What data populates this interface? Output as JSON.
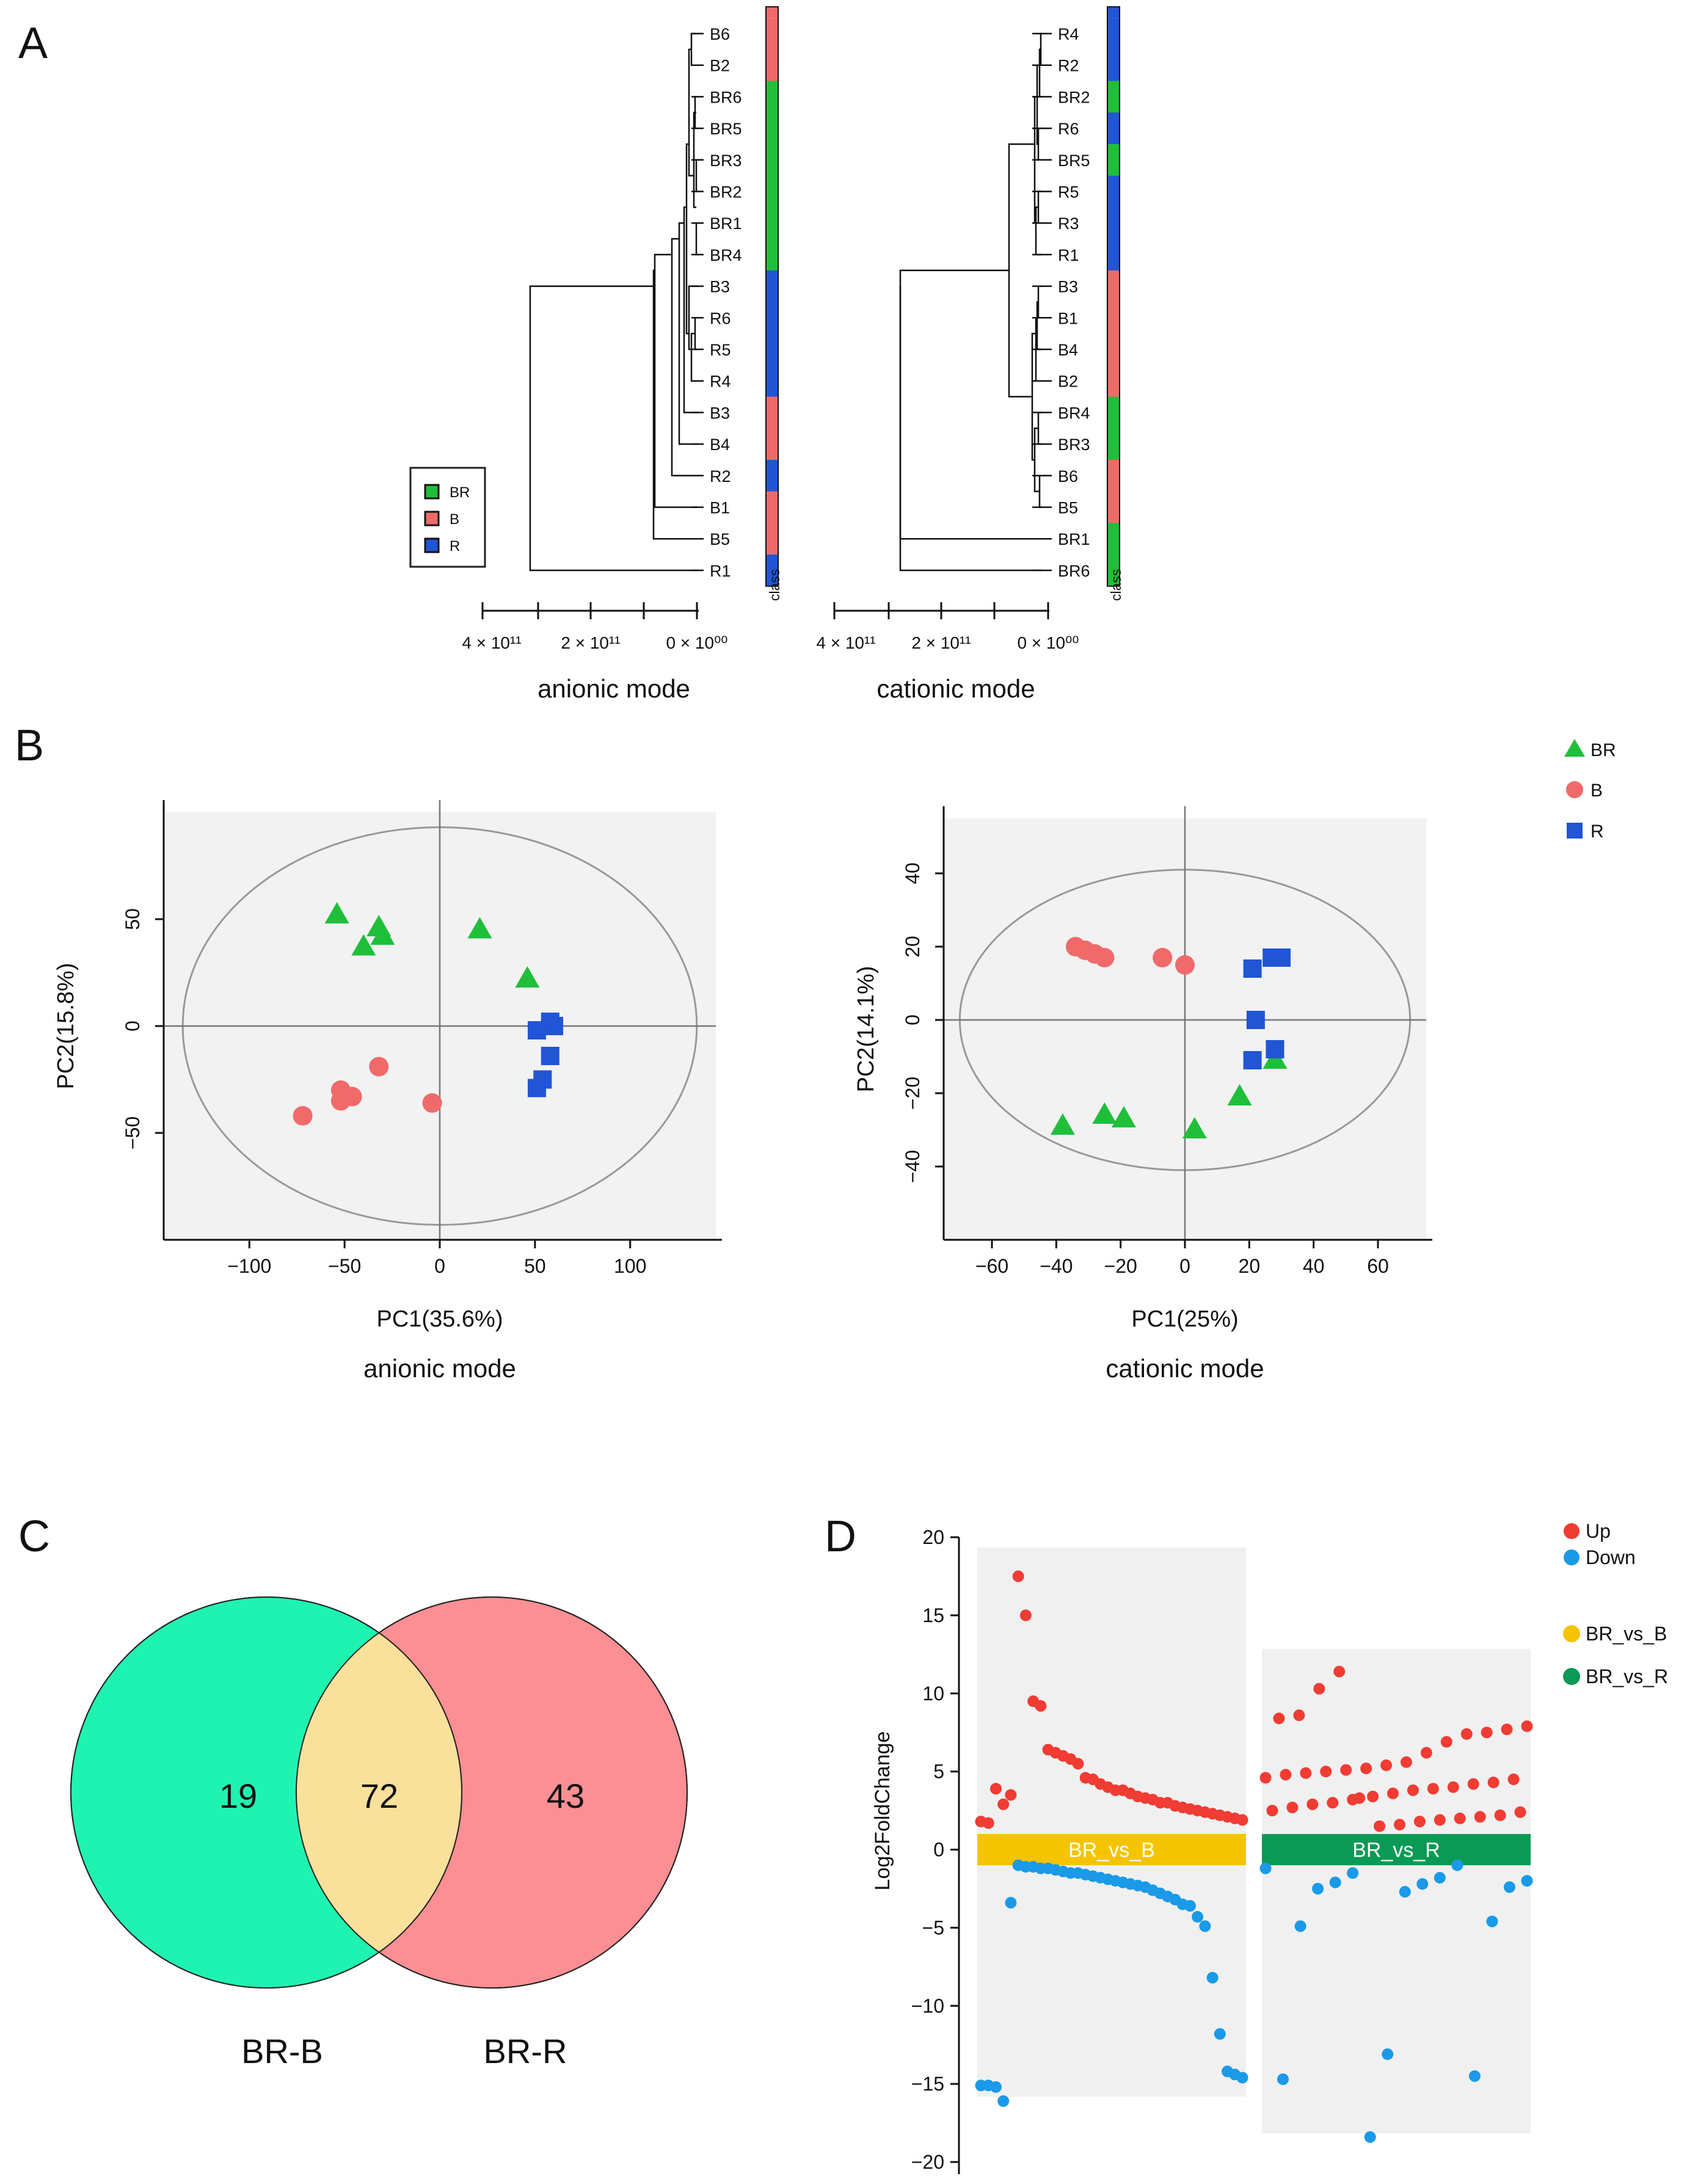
{
  "panel_labels": {
    "a": "A",
    "b": "B",
    "c": "C",
    "d": "D"
  },
  "colors": {
    "BR": "#1fbf3a",
    "B": "#f06a6a",
    "R": "#2155d6",
    "up": "#f03c33",
    "down": "#1a9ae8",
    "br_vs_b": "#f5c400",
    "br_vs_r": "#0a9a55",
    "venn_left": "#1ff3b1",
    "venn_right": "#fb8f93",
    "venn_overlap": "#f9e09b"
  },
  "chart_data": [
    {
      "type": "dendrogram",
      "title": "anionic mode",
      "xaxis_ticks": [
        "4 × 10¹¹",
        "2 × 10¹¹",
        "0 × 10⁰⁰"
      ],
      "class_label": "class",
      "leaves": [
        {
          "name": "B6",
          "class": "B"
        },
        {
          "name": "B2",
          "class": "B"
        },
        {
          "name": "BR6",
          "class": "BR"
        },
        {
          "name": "BR5",
          "class": "BR"
        },
        {
          "name": "BR3",
          "class": "BR"
        },
        {
          "name": "BR2",
          "class": "BR"
        },
        {
          "name": "BR1",
          "class": "BR"
        },
        {
          "name": "BR4",
          "class": "BR"
        },
        {
          "name": "B3",
          "class": "R"
        },
        {
          "name": "R6",
          "class": "R"
        },
        {
          "name": "R5",
          "class": "R"
        },
        {
          "name": "R4",
          "class": "R"
        },
        {
          "name": "B3",
          "class": "B"
        },
        {
          "name": "B4",
          "class": "B"
        },
        {
          "name": "R2",
          "class": "R"
        },
        {
          "name": "B1",
          "class": "B"
        },
        {
          "name": "B5",
          "class": "B"
        },
        {
          "name": "R1",
          "class": "R"
        }
      ],
      "legend": [
        "BR",
        "B",
        "R"
      ]
    },
    {
      "type": "dendrogram",
      "title": "cationic mode",
      "xaxis_ticks": [
        "4 × 10¹¹",
        "2 × 10¹¹",
        "0 × 10⁰⁰"
      ],
      "class_label": "class",
      "leaves": [
        {
          "name": "R4",
          "class": "R"
        },
        {
          "name": "R2",
          "class": "R"
        },
        {
          "name": "BR2",
          "class": "BR"
        },
        {
          "name": "R6",
          "class": "R"
        },
        {
          "name": "BR5",
          "class": "BR"
        },
        {
          "name": "R5",
          "class": "R"
        },
        {
          "name": "R3",
          "class": "R"
        },
        {
          "name": "R1",
          "class": "R"
        },
        {
          "name": "B3",
          "class": "B"
        },
        {
          "name": "B1",
          "class": "B"
        },
        {
          "name": "B4",
          "class": "B"
        },
        {
          "name": "B2",
          "class": "B"
        },
        {
          "name": "BR4",
          "class": "BR"
        },
        {
          "name": "BR3",
          "class": "BR"
        },
        {
          "name": "B6",
          "class": "B"
        },
        {
          "name": "B5",
          "class": "B"
        },
        {
          "name": "BR1",
          "class": "BR"
        },
        {
          "name": "BR6",
          "class": "BR"
        }
      ]
    },
    {
      "type": "scatter",
      "title": "anionic mode",
      "xlabel": "PC1(35.6%)",
      "ylabel": "PC2(15.8%)",
      "xlim": [
        -145,
        145
      ],
      "ylim": [
        -100,
        100
      ],
      "xticks": [
        -100,
        -50,
        0,
        50,
        100
      ],
      "yticks": [
        50,
        0,
        -50
      ],
      "xtick_labels": [
        "−100",
        "−50",
        "0",
        "50",
        "100"
      ],
      "ytick_labels": [
        "50",
        "0",
        "−50"
      ],
      "ellipse": {
        "rx": 135,
        "ry": 93
      },
      "series": [
        {
          "name": "BR",
          "marker": "triangle",
          "points": [
            [
              -54,
              52
            ],
            [
              -32,
              46
            ],
            [
              -30,
              42
            ],
            [
              -40,
              37
            ],
            [
              21,
              45
            ],
            [
              46,
              22
            ]
          ]
        },
        {
          "name": "B",
          "marker": "circle",
          "points": [
            [
              -72,
              -42
            ],
            [
              -52,
              -30
            ],
            [
              -52,
              -35
            ],
            [
              -46,
              -33
            ],
            [
              -32,
              -19
            ],
            [
              -4,
              -36
            ]
          ]
        },
        {
          "name": "R",
          "marker": "square",
          "points": [
            [
              58,
              2
            ],
            [
              60,
              0
            ],
            [
              51,
              -2
            ],
            [
              58,
              -14
            ],
            [
              54,
              -25
            ],
            [
              51,
              -29
            ]
          ]
        }
      ]
    },
    {
      "type": "scatter",
      "title": "cationic mode",
      "xlabel": "PC1(25%)",
      "ylabel": "PC2(14.1%)",
      "xlim": [
        -75,
        75
      ],
      "ylim": [
        -60,
        55
      ],
      "xticks": [
        -60,
        -40,
        -20,
        0,
        20,
        40,
        60
      ],
      "yticks": [
        40,
        20,
        0,
        -20,
        -40
      ],
      "xtick_labels": [
        "−60",
        "−40",
        "−20",
        "0",
        "20",
        "40",
        "60"
      ],
      "ytick_labels": [
        "40",
        "20",
        "0",
        "−20",
        "−40"
      ],
      "ellipse": {
        "rx": 70,
        "ry": 41
      },
      "series": [
        {
          "name": "BR",
          "marker": "triangle",
          "points": [
            [
              -38,
              -29
            ],
            [
              -25,
              -26
            ],
            [
              -19,
              -27
            ],
            [
              3,
              -30
            ],
            [
              17,
              -21
            ],
            [
              28,
              -11
            ]
          ]
        },
        {
          "name": "B",
          "marker": "circle",
          "points": [
            [
              -34,
              20
            ],
            [
              -31,
              19
            ],
            [
              -28,
              18
            ],
            [
              -25,
              17
            ],
            [
              -7,
              17
            ],
            [
              0,
              15
            ]
          ]
        },
        {
          "name": "R",
          "marker": "square",
          "points": [
            [
              21,
              14
            ],
            [
              27,
              17
            ],
            [
              30,
              17
            ],
            [
              22,
              0
            ],
            [
              21,
              -11
            ],
            [
              28,
              -8
            ]
          ]
        }
      ],
      "legend": [
        "BR",
        "B",
        "R"
      ]
    },
    {
      "type": "venn",
      "sets": [
        {
          "name": "BR-B",
          "only": 19
        },
        {
          "name": "BR-R",
          "only": 43
        }
      ],
      "overlap": 72
    },
    {
      "type": "scatter",
      "ylabel": "Log2FoldChange",
      "ylim": [
        -21,
        21
      ],
      "yticks": [
        20,
        15,
        10,
        5,
        0,
        -5,
        -10,
        -15,
        -20
      ],
      "ytick_labels": [
        "20",
        "15",
        "10",
        "5",
        "0",
        "−5",
        "−10",
        "−15",
        "−20"
      ],
      "legend_direction": [
        "Up",
        "Down"
      ],
      "legend_group": [
        "BR_vs_B",
        "BR_vs_R"
      ],
      "groups": [
        {
          "name": "BR_vs_B",
          "up": [
            17.5,
            15,
            9.5,
            9.2,
            6.4,
            6.2,
            6.0,
            5.8,
            5.5,
            4.6,
            4.5,
            4.2,
            4.0,
            3.8,
            3.8,
            3.6,
            3.4,
            3.3,
            3.2,
            3.0,
            3.0,
            2.8,
            2.7,
            2.6,
            2.5,
            2.4,
            2.3,
            2.2,
            2.1,
            2.0,
            1.9,
            1.8,
            1.7,
            3.9,
            2.9,
            3.5
          ],
          "down": [
            -1.0,
            -1.1,
            -1.1,
            -1.2,
            -1.2,
            -1.3,
            -1.4,
            -1.5,
            -1.5,
            -1.6,
            -1.7,
            -1.8,
            -1.9,
            -2.0,
            -2.1,
            -2.2,
            -2.3,
            -2.4,
            -2.6,
            -2.8,
            -3.0,
            -3.2,
            -3.5,
            -3.6,
            -4.3,
            -4.9,
            -8.2,
            -11.8,
            -14.2,
            -14.4,
            -14.6,
            -15.1,
            -15.1,
            -15.2,
            -16.1,
            -3.4
          ]
        },
        {
          "name": "BR_vs_R",
          "up": [
            11.4,
            10.3,
            8.6,
            8.4,
            7.9,
            7.7,
            7.5,
            7.4,
            6.9,
            6.2,
            5.6,
            5.4,
            5.2,
            5.1,
            5.0,
            4.9,
            4.8,
            4.6,
            4.5,
            4.3,
            4.2,
            4.0,
            3.9,
            3.8,
            3.6,
            3.4,
            3.2,
            3.0,
            2.9,
            2.7,
            2.5,
            2.4,
            2.2,
            2.1,
            2.0,
            1.9,
            1.8,
            1.6,
            1.5,
            3.3
          ],
          "down": [
            -1.0,
            -1.2,
            -1.5,
            -1.8,
            -2.0,
            -2.1,
            -2.2,
            -2.4,
            -2.5,
            -2.7,
            -4.6,
            -4.9,
            -13.1,
            -14.5,
            -14.7,
            -18.4
          ]
        }
      ]
    }
  ]
}
